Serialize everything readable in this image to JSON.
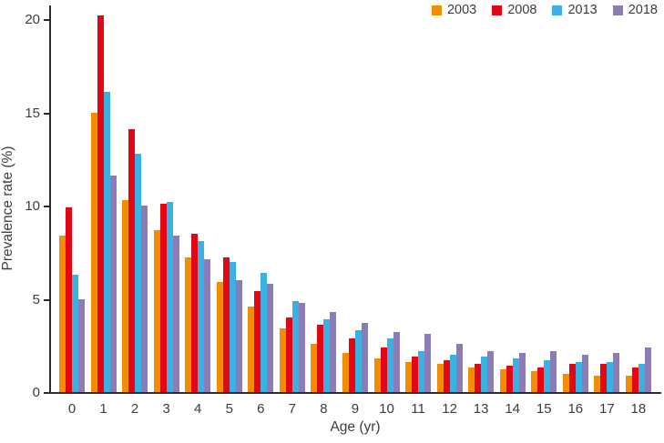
{
  "chart_data": {
    "type": "bar",
    "grouping": "grouped",
    "title": "",
    "xlabel": "Age (yr)",
    "ylabel": "Prevalence rate (%)",
    "ylim": [
      0,
      20
    ],
    "yticks": [
      0,
      5,
      10,
      15,
      20
    ],
    "grid": false,
    "legend_position": "top-right",
    "categories": [
      "0",
      "1",
      "2",
      "3",
      "4",
      "5",
      "6",
      "7",
      "8",
      "9",
      "10",
      "11",
      "12",
      "13",
      "14",
      "15",
      "16",
      "17",
      "18"
    ],
    "series": [
      {
        "name": "2003",
        "color": "#F28C00",
        "values": [
          8.4,
          15.0,
          10.3,
          8.7,
          7.2,
          5.9,
          4.6,
          3.4,
          2.6,
          2.1,
          1.8,
          1.6,
          1.5,
          1.3,
          1.2,
          1.1,
          1.0,
          0.9,
          0.9
        ]
      },
      {
        "name": "2008",
        "color": "#E30617",
        "values": [
          9.9,
          20.2,
          14.1,
          10.1,
          8.5,
          7.2,
          5.4,
          4.0,
          3.6,
          2.9,
          2.4,
          1.9,
          1.7,
          1.5,
          1.4,
          1.3,
          1.5,
          1.5,
          1.3
        ]
      },
      {
        "name": "2013",
        "color": "#3AB1E2",
        "values": [
          6.3,
          16.1,
          12.8,
          10.2,
          8.1,
          7.0,
          6.4,
          4.9,
          3.9,
          3.3,
          2.9,
          2.2,
          2.0,
          1.9,
          1.8,
          1.7,
          1.6,
          1.6,
          1.5
        ]
      },
      {
        "name": "2018",
        "color": "#8B7CB6",
        "values": [
          5.0,
          11.6,
          10.0,
          8.4,
          7.1,
          6.0,
          5.8,
          4.8,
          4.3,
          3.7,
          3.2,
          3.1,
          2.6,
          2.2,
          2.1,
          2.2,
          2.0,
          2.1,
          2.4
        ]
      }
    ],
    "axis_color": "#2b2b2b",
    "text_color": "#3d3d3d"
  }
}
